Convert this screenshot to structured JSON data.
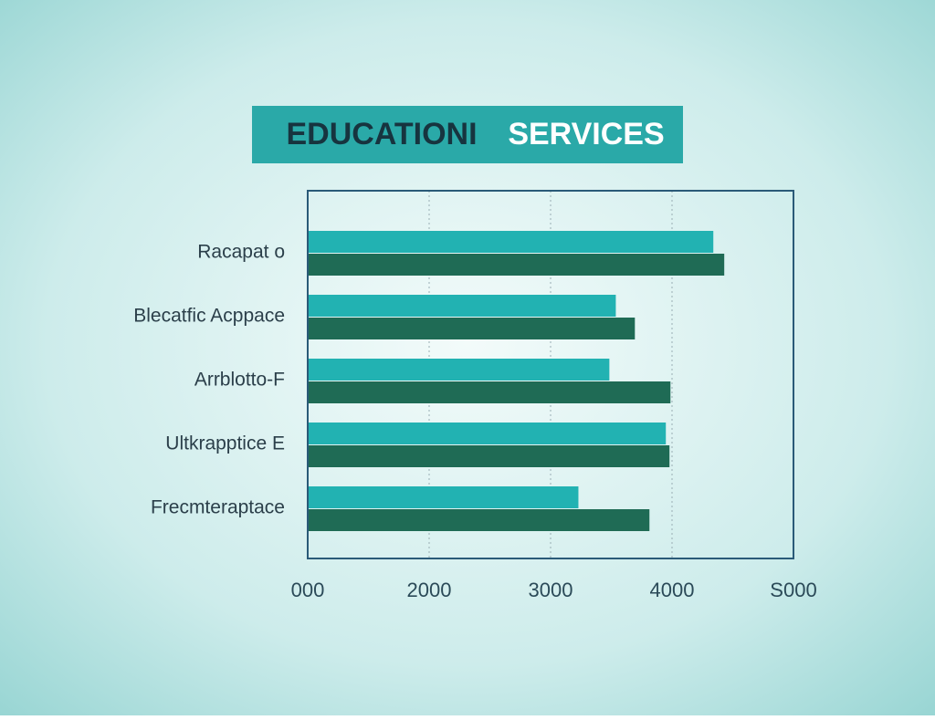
{
  "chart_data": {
    "type": "barh",
    "title": [
      "EDUCATIONI",
      "SERVICES"
    ],
    "categories": [
      "Racapat o",
      "Blecatfic Acppace",
      "Arrblotto-F",
      "Ultkrapptice E",
      "Frecmteraptace"
    ],
    "series": [
      {
        "color": "#22b2b2",
        "values": [
          4340,
          3537,
          3484,
          3949,
          3229
        ]
      },
      {
        "color": "#1f6b55",
        "values": [
          4430,
          3694,
          3987,
          3979,
          3814
        ]
      }
    ],
    "xlim": [
      1000,
      5000
    ],
    "xticks": [
      {
        "value": 1000,
        "label": "000"
      },
      2000,
      3000,
      4000,
      {
        "value": 5000,
        "label": "S000"
      }
    ],
    "grid": true
  }
}
